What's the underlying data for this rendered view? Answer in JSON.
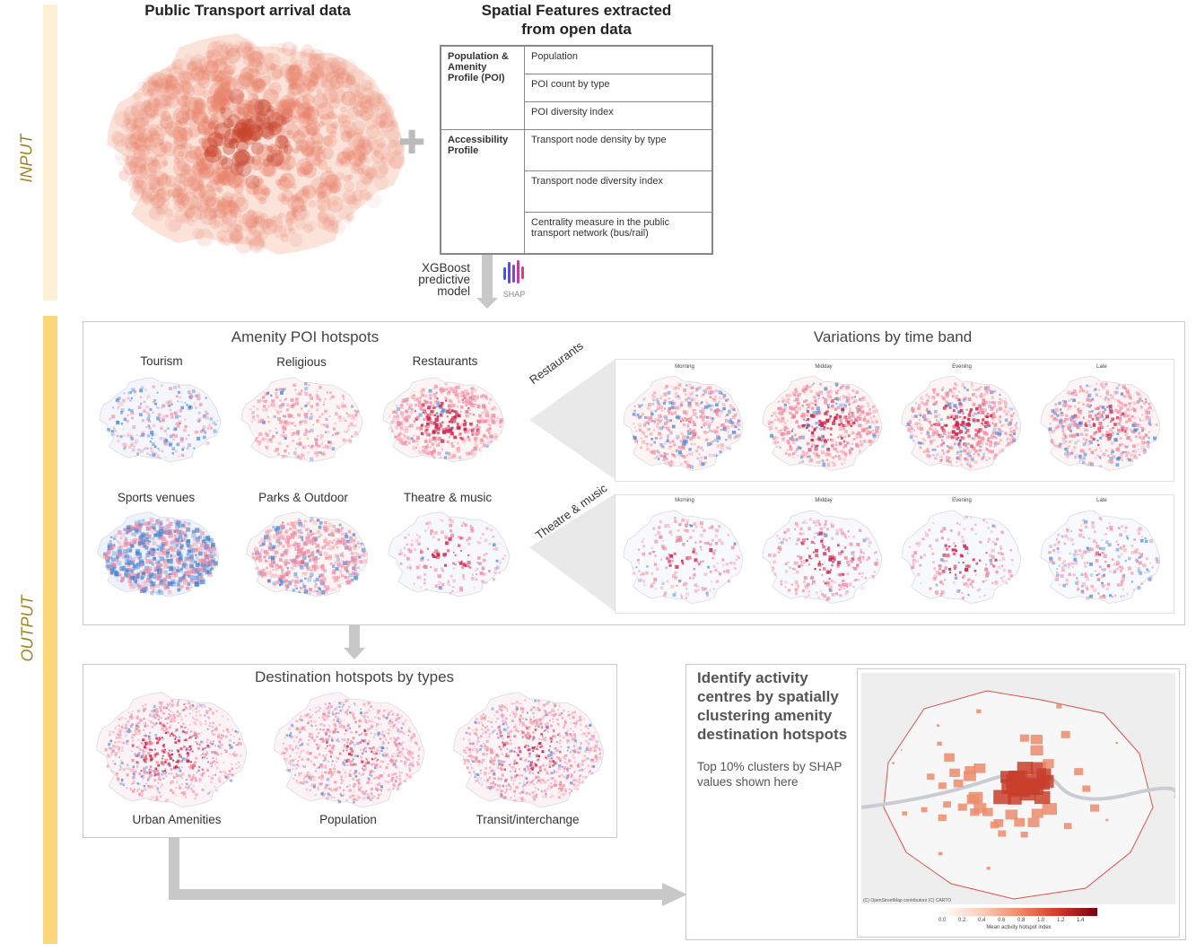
{
  "sidebar": {
    "input_label": "INPUT",
    "output_label": "OUTPUT"
  },
  "input": {
    "transport_title": "Public Transport arrival data",
    "features_title_line1": "Spatial Features extracted",
    "features_title_line2": "from open data",
    "feature_groups": [
      {
        "group": "Population & Amenity Profile (POI)",
        "features": [
          "Population",
          "POI count by type",
          "POI diversity index"
        ]
      },
      {
        "group": "Accessibility Profile",
        "features": [
          "Transport node density by type",
          "Transport node diversity index",
          "Centrality measure in the public transport network (bus/rail)"
        ]
      }
    ],
    "plus_symbol": "✚",
    "model_line1": "XGBoost",
    "model_line2": "predictive",
    "model_line3": "model",
    "shap_label": "SHAP"
  },
  "output": {
    "amenity_title": "Amenity POI hotspots",
    "amenity_maps": [
      "Tourism",
      "Religious",
      "Restaurants",
      "Sports venues",
      "Parks & Outdoor",
      "Theatre & music"
    ],
    "time_title": "Variations by time band",
    "time_rows": [
      "Restaurants",
      "Theatre & music"
    ],
    "time_bands": [
      "Morning",
      "Midday",
      "Evening",
      "Late"
    ],
    "destination_title": "Destination hotspots by types",
    "destination_maps": [
      "Urban Amenities",
      "Population",
      "Transit/interchange"
    ],
    "cluster_heading_lines": [
      "Identify activity",
      "centres by spatially",
      "clustering amenity",
      "destination hotspots"
    ],
    "cluster_note_lines": [
      "Top 10% clusters by SHAP",
      "values shown here"
    ],
    "map_attribution": "(C) OpenStreetMap contributors (C) CARTO",
    "colorbar_ticks": [
      "0.0",
      "0.2",
      "0.4",
      "0.6",
      "0.8",
      "1.0",
      "1.2",
      "1.4"
    ],
    "colorbar_label": "Mean activity hotspot index"
  },
  "colors": {
    "input_bar": "#fdf0d5",
    "output_bar": "#fbd67a",
    "hot": "#d23b2a",
    "cool": "#3b82d6"
  }
}
